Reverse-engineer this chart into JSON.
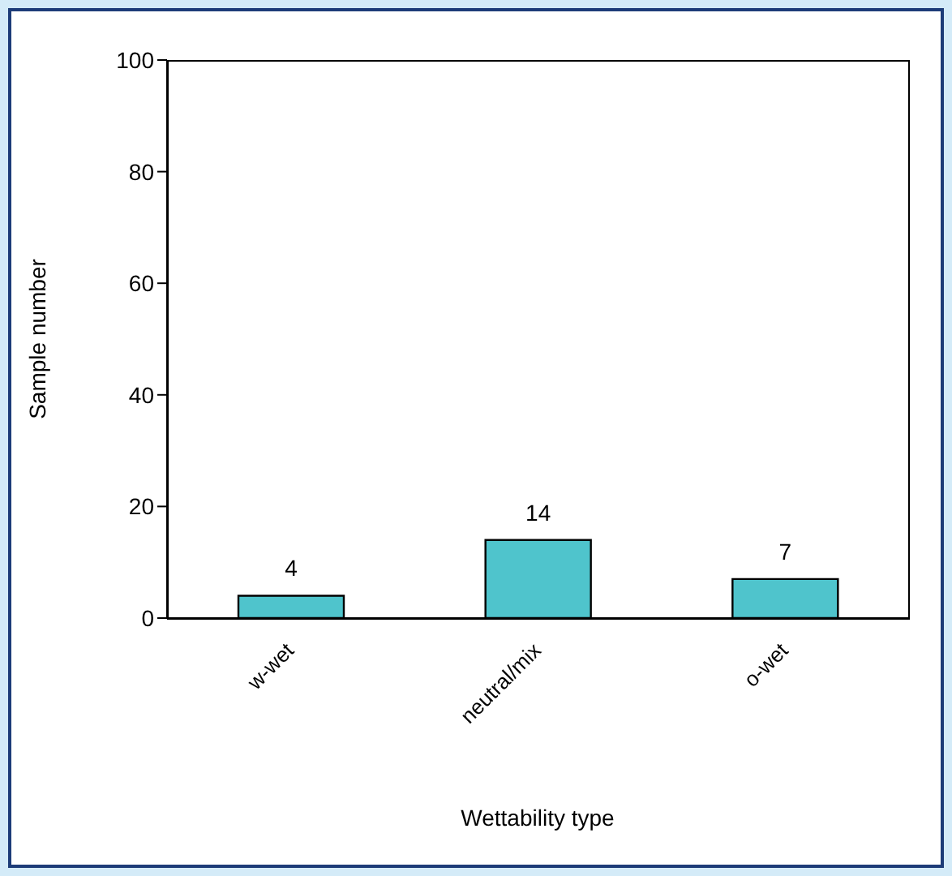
{
  "chart_data": {
    "type": "bar",
    "xlabel": "Wettability type",
    "ylabel": "Sample number",
    "categories": [
      "w-wet",
      "neutral/mix",
      "o-wet"
    ],
    "values": [
      4,
      14,
      7
    ],
    "color": "#4fc4cc",
    "ylim": [
      0,
      100
    ],
    "yticks": [
      0,
      20,
      40,
      60,
      80,
      100
    ],
    "data_labels": true
  }
}
